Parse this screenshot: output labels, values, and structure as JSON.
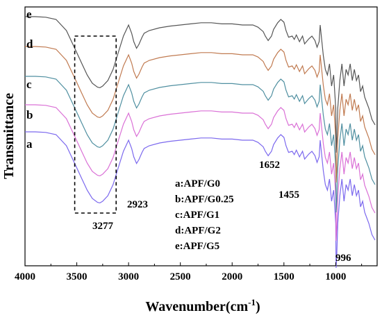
{
  "chart_data": {
    "type": "line",
    "xlabel": "Wavenumber(cm",
    "xlabel_sup": "-1",
    "xlabel_close": ")",
    "ylabel": "Transmittance",
    "xlim": [
      4000,
      600
    ],
    "x_reversed": true,
    "xticks": [
      4000,
      3500,
      3000,
      2500,
      2000,
      1500,
      1000
    ],
    "grid": false,
    "series": [
      {
        "name": "a",
        "color": "#7b68ee",
        "x": [
          4000,
          3900,
          3800,
          3700,
          3600,
          3500,
          3450,
          3400,
          3350,
          3300,
          3277,
          3250,
          3200,
          3150,
          3100,
          3050,
          3000,
          2970,
          2950,
          2923,
          2900,
          2870,
          2850,
          2800,
          2700,
          2600,
          2500,
          2400,
          2300,
          2200,
          2100,
          2000,
          1900,
          1800,
          1750,
          1700,
          1680,
          1652,
          1620,
          1600,
          1560,
          1530,
          1500,
          1480,
          1455,
          1420,
          1400,
          1380,
          1350,
          1320,
          1300,
          1260,
          1230,
          1200,
          1180,
          1160,
          1150,
          1120,
          1100,
          1080,
          1060,
          1040,
          1020,
          1000,
          996,
          990,
          980,
          960,
          940,
          920,
          900,
          880,
          860,
          840,
          820,
          800,
          780,
          760,
          740,
          720,
          700,
          680,
          650,
          620
        ],
        "y": [
          0.045,
          0.045,
          0.044,
          0.04,
          0.02,
          -0.02,
          -0.04,
          -0.06,
          -0.075,
          -0.082,
          -0.083,
          -0.08,
          -0.07,
          -0.05,
          -0.02,
          0.01,
          0.03,
          0.015,
          0.0,
          -0.012,
          -0.005,
          0.008,
          0.015,
          0.02,
          0.025,
          0.028,
          0.03,
          0.032,
          0.034,
          0.034,
          0.032,
          0.032,
          0.03,
          0.03,
          0.026,
          0.018,
          0.01,
          0.002,
          0.01,
          0.022,
          0.034,
          0.04,
          0.035,
          0.02,
          0.008,
          0.01,
          0.004,
          0.012,
          0.0,
          0.01,
          -0.004,
          0.005,
          0.01,
          0.002,
          -0.01,
          0.0,
          0.03,
          -0.025,
          -0.05,
          -0.06,
          -0.04,
          -0.08,
          -0.06,
          -0.12,
          -0.2,
          -0.18,
          -0.12,
          -0.07,
          -0.04,
          -0.08,
          -0.05,
          -0.06,
          -0.04,
          -0.07,
          -0.05,
          -0.07,
          -0.06,
          -0.09,
          -0.08,
          -0.1,
          -0.11,
          -0.12,
          -0.14,
          -0.15
        ]
      },
      {
        "name": "b",
        "color": "#da70d6",
        "x": [
          4000,
          3900,
          3800,
          3700,
          3600,
          3500,
          3450,
          3400,
          3350,
          3300,
          3277,
          3250,
          3200,
          3150,
          3100,
          3050,
          3000,
          2970,
          2950,
          2923,
          2900,
          2870,
          2850,
          2800,
          2700,
          2600,
          2500,
          2400,
          2300,
          2200,
          2100,
          2000,
          1900,
          1800,
          1750,
          1700,
          1680,
          1652,
          1620,
          1600,
          1560,
          1530,
          1500,
          1480,
          1455,
          1420,
          1400,
          1380,
          1350,
          1320,
          1300,
          1260,
          1230,
          1200,
          1180,
          1160,
          1150,
          1120,
          1100,
          1080,
          1060,
          1040,
          1020,
          1000,
          996,
          990,
          980,
          960,
          940,
          920,
          900,
          880,
          860,
          840,
          820,
          800,
          780,
          760,
          740,
          720,
          700,
          680,
          650,
          620
        ],
        "y": [
          0.045,
          0.045,
          0.044,
          0.04,
          0.02,
          -0.02,
          -0.04,
          -0.06,
          -0.075,
          -0.082,
          -0.083,
          -0.08,
          -0.07,
          -0.05,
          -0.02,
          0.01,
          0.03,
          0.015,
          0.0,
          -0.012,
          -0.005,
          0.008,
          0.015,
          0.02,
          0.025,
          0.028,
          0.03,
          0.032,
          0.034,
          0.034,
          0.032,
          0.032,
          0.03,
          0.03,
          0.026,
          0.018,
          0.01,
          0.002,
          0.01,
          0.022,
          0.034,
          0.04,
          0.035,
          0.02,
          0.008,
          0.01,
          0.004,
          0.012,
          0.0,
          0.01,
          -0.004,
          0.005,
          0.01,
          0.002,
          -0.01,
          0.0,
          0.03,
          -0.025,
          -0.05,
          -0.06,
          -0.04,
          -0.08,
          -0.06,
          -0.12,
          -0.2,
          -0.18,
          -0.12,
          -0.07,
          -0.04,
          -0.08,
          -0.05,
          -0.06,
          -0.04,
          -0.07,
          -0.05,
          -0.07,
          -0.06,
          -0.09,
          -0.08,
          -0.1,
          -0.11,
          -0.12,
          -0.14,
          -0.15
        ]
      },
      {
        "name": "c",
        "color": "#4f8fa0",
        "x": [
          4000,
          3900,
          3800,
          3700,
          3600,
          3500,
          3450,
          3400,
          3350,
          3300,
          3277,
          3250,
          3200,
          3150,
          3100,
          3050,
          3000,
          2970,
          2950,
          2923,
          2900,
          2870,
          2850,
          2800,
          2700,
          2600,
          2500,
          2400,
          2300,
          2200,
          2100,
          2000,
          1900,
          1800,
          1750,
          1700,
          1680,
          1652,
          1620,
          1600,
          1560,
          1530,
          1500,
          1480,
          1455,
          1420,
          1400,
          1380,
          1350,
          1320,
          1300,
          1260,
          1230,
          1200,
          1180,
          1160,
          1150,
          1120,
          1100,
          1080,
          1060,
          1040,
          1020,
          1000,
          996,
          990,
          980,
          960,
          940,
          920,
          900,
          880,
          860,
          840,
          820,
          800,
          780,
          760,
          740,
          720,
          700,
          680,
          650,
          620
        ],
        "y": [
          0.045,
          0.045,
          0.044,
          0.04,
          0.02,
          -0.02,
          -0.04,
          -0.06,
          -0.075,
          -0.082,
          -0.083,
          -0.08,
          -0.07,
          -0.05,
          -0.02,
          0.01,
          0.03,
          0.015,
          0.0,
          -0.012,
          -0.005,
          0.008,
          0.015,
          0.02,
          0.025,
          0.028,
          0.03,
          0.032,
          0.034,
          0.034,
          0.032,
          0.032,
          0.03,
          0.03,
          0.026,
          0.018,
          0.01,
          0.002,
          0.01,
          0.022,
          0.034,
          0.04,
          0.035,
          0.02,
          0.008,
          0.01,
          0.004,
          0.012,
          0.0,
          0.01,
          -0.004,
          0.005,
          0.01,
          0.002,
          -0.01,
          0.0,
          0.03,
          -0.025,
          -0.05,
          -0.06,
          -0.04,
          -0.08,
          -0.06,
          -0.12,
          -0.2,
          -0.18,
          -0.12,
          -0.07,
          -0.04,
          -0.08,
          -0.05,
          -0.06,
          -0.04,
          -0.07,
          -0.05,
          -0.07,
          -0.06,
          -0.09,
          -0.08,
          -0.1,
          -0.11,
          -0.12,
          -0.14,
          -0.15
        ]
      },
      {
        "name": "d",
        "color": "#c07a50",
        "x": [
          4000,
          3900,
          3800,
          3700,
          3600,
          3500,
          3450,
          3400,
          3350,
          3300,
          3277,
          3250,
          3200,
          3150,
          3100,
          3050,
          3000,
          2970,
          2950,
          2923,
          2900,
          2870,
          2850,
          2800,
          2700,
          2600,
          2500,
          2400,
          2300,
          2200,
          2100,
          2000,
          1900,
          1800,
          1750,
          1700,
          1680,
          1652,
          1620,
          1600,
          1560,
          1530,
          1500,
          1480,
          1455,
          1420,
          1400,
          1380,
          1350,
          1320,
          1300,
          1260,
          1230,
          1200,
          1180,
          1160,
          1150,
          1120,
          1100,
          1080,
          1060,
          1040,
          1020,
          1000,
          996,
          990,
          980,
          960,
          940,
          920,
          900,
          880,
          860,
          840,
          820,
          800,
          780,
          760,
          740,
          720,
          700,
          680,
          650,
          620
        ],
        "y": [
          0.045,
          0.045,
          0.044,
          0.04,
          0.02,
          -0.02,
          -0.04,
          -0.06,
          -0.075,
          -0.082,
          -0.083,
          -0.08,
          -0.07,
          -0.05,
          -0.02,
          0.01,
          0.03,
          0.015,
          0.0,
          -0.012,
          -0.005,
          0.008,
          0.015,
          0.02,
          0.025,
          0.028,
          0.03,
          0.032,
          0.034,
          0.034,
          0.032,
          0.032,
          0.03,
          0.03,
          0.026,
          0.018,
          0.01,
          0.002,
          0.01,
          0.022,
          0.034,
          0.04,
          0.035,
          0.02,
          0.008,
          0.01,
          0.004,
          0.012,
          0.0,
          0.01,
          -0.004,
          0.005,
          0.01,
          0.002,
          -0.01,
          0.0,
          0.03,
          -0.025,
          -0.05,
          -0.06,
          -0.04,
          -0.08,
          -0.06,
          -0.12,
          -0.2,
          -0.18,
          -0.12,
          -0.07,
          -0.04,
          -0.08,
          -0.05,
          -0.06,
          -0.04,
          -0.07,
          -0.05,
          -0.07,
          -0.06,
          -0.09,
          -0.08,
          -0.1,
          -0.11,
          -0.12,
          -0.14,
          -0.15
        ]
      },
      {
        "name": "e",
        "color": "#555555",
        "x": [
          4000,
          3900,
          3800,
          3700,
          3600,
          3500,
          3450,
          3400,
          3350,
          3300,
          3277,
          3250,
          3200,
          3150,
          3100,
          3050,
          3000,
          2970,
          2950,
          2923,
          2900,
          2870,
          2850,
          2800,
          2700,
          2600,
          2500,
          2400,
          2300,
          2200,
          2100,
          2000,
          1900,
          1800,
          1750,
          1700,
          1680,
          1652,
          1620,
          1600,
          1560,
          1530,
          1500,
          1480,
          1455,
          1420,
          1400,
          1380,
          1350,
          1320,
          1300,
          1260,
          1230,
          1200,
          1180,
          1160,
          1150,
          1120,
          1100,
          1080,
          1060,
          1040,
          1020,
          1000,
          996,
          990,
          980,
          960,
          940,
          920,
          900,
          880,
          860,
          840,
          820,
          800,
          780,
          760,
          740,
          720,
          700,
          680,
          650,
          620
        ],
        "y": [
          0.045,
          0.045,
          0.044,
          0.04,
          0.02,
          -0.02,
          -0.04,
          -0.06,
          -0.075,
          -0.082,
          -0.083,
          -0.08,
          -0.07,
          -0.05,
          -0.02,
          0.01,
          0.03,
          0.015,
          0.0,
          -0.012,
          -0.005,
          0.008,
          0.015,
          0.02,
          0.025,
          0.028,
          0.03,
          0.032,
          0.034,
          0.034,
          0.032,
          0.032,
          0.03,
          0.03,
          0.026,
          0.018,
          0.01,
          0.002,
          0.01,
          0.022,
          0.034,
          0.04,
          0.035,
          0.02,
          0.008,
          0.01,
          0.004,
          0.012,
          0.0,
          0.01,
          -0.004,
          0.005,
          0.01,
          0.002,
          -0.01,
          0.0,
          0.03,
          -0.025,
          -0.05,
          -0.06,
          -0.04,
          -0.08,
          -0.06,
          -0.12,
          -0.2,
          -0.18,
          -0.12,
          -0.07,
          -0.04,
          -0.08,
          -0.05,
          -0.06,
          -0.04,
          -0.07,
          -0.05,
          -0.07,
          -0.06,
          -0.09,
          -0.08,
          -0.1,
          -0.11,
          -0.12,
          -0.14,
          -0.15
        ]
      }
    ],
    "series_labels": [
      "a",
      "b",
      "c",
      "d",
      "e"
    ],
    "peak_labels": [
      "3277",
      "2923",
      "1652",
      "1455",
      "996"
    ],
    "legend": {
      "placement": "lower-center",
      "entries": [
        "a:APF/G0",
        "b:APF/G0.25",
        "c:APF/G1",
        "d:APF/G2",
        "e:APF/G5"
      ]
    },
    "highlight_box": {
      "x_from": 3520,
      "x_to": 3120,
      "style": "dashed"
    }
  }
}
